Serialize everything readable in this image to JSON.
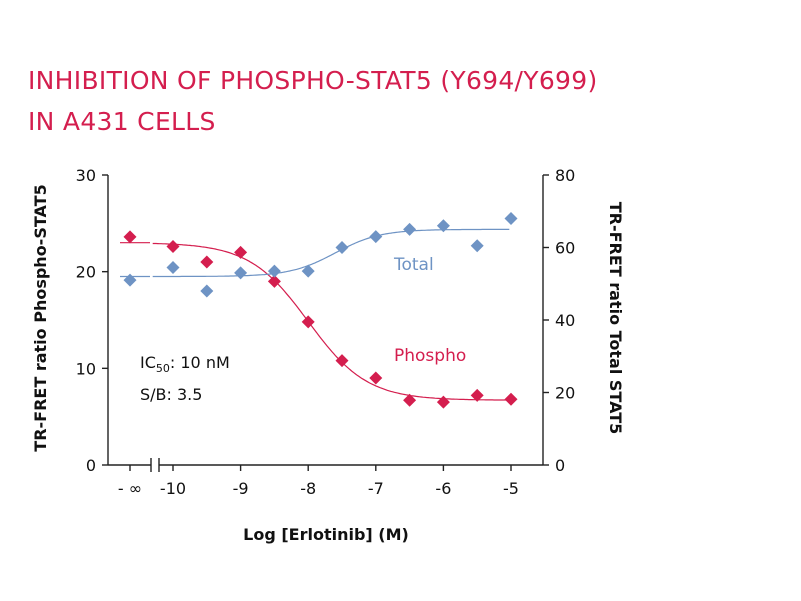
{
  "title": {
    "line1": "INHIBITION OF PHOSPHO-STAT5 (Y694/Y699)",
    "line2": "IN A431 CELLS"
  },
  "colors": {
    "title": "#d41e4e",
    "phospho": "#d41e4e",
    "total": "#6e93c4",
    "axes": "#222222"
  },
  "chart_data": {
    "type": "scatter",
    "title": "INHIBITION OF PHOSPHO-STAT5 (Y694/Y699) IN A431 CELLS",
    "xlabel": "Log [Erlotinib] (M)",
    "ylabel_left": "TR-FRET ratio Phospho-STAT5",
    "ylabel_right": "TR-FRET ratio Total STAT5",
    "x_ticks": [
      "- ∞",
      "-10",
      "-9",
      "-8",
      "-7",
      "-6",
      "-5"
    ],
    "ylim_left": [
      0,
      30
    ],
    "yticks_left": [
      "0",
      "10",
      "20",
      "30"
    ],
    "ylim_right": [
      0,
      80
    ],
    "yticks_right": [
      "0",
      "20",
      "40",
      "60",
      "80"
    ],
    "xlim": [
      -10.6,
      -4.5
    ],
    "grid": false,
    "series": [
      {
        "name": "Phospho",
        "axis": "left",
        "color": "#d41e4e",
        "x": [
          "-inf",
          -10,
          -9.5,
          -9,
          -8.5,
          -8,
          -7.5,
          -7,
          -6.5,
          -6,
          -5.5,
          -5
        ],
        "y": [
          23.6,
          22.6,
          21.0,
          22.0,
          19.0,
          14.8,
          10.8,
          9.0,
          6.7,
          6.5,
          7.2,
          6.8
        ],
        "fit": {
          "type": "4PL",
          "top": 23.0,
          "bottom": 6.7,
          "log_ic50": -8.0,
          "hill": 1.0
        }
      },
      {
        "name": "Total",
        "axis": "right",
        "color": "#6e93c4",
        "x": [
          "-inf",
          -10,
          -9.5,
          -9,
          -8.5,
          -8,
          -7.5,
          -7,
          -6.5,
          -6,
          -5.5,
          -5
        ],
        "y": [
          51,
          54.5,
          48,
          53,
          53.5,
          53.5,
          60,
          63,
          65,
          66,
          60.5,
          68
        ],
        "fit": {
          "type": "4PL",
          "top": 52.0,
          "bottom": 65.0,
          "log_ic50": -7.6,
          "hill": 1.3
        }
      }
    ],
    "annotations": {
      "ic50_prefix": "IC",
      "ic50_sub": "50",
      "ic50_suffix": ": 10 nM",
      "sb": "S/B: 3.5"
    }
  }
}
